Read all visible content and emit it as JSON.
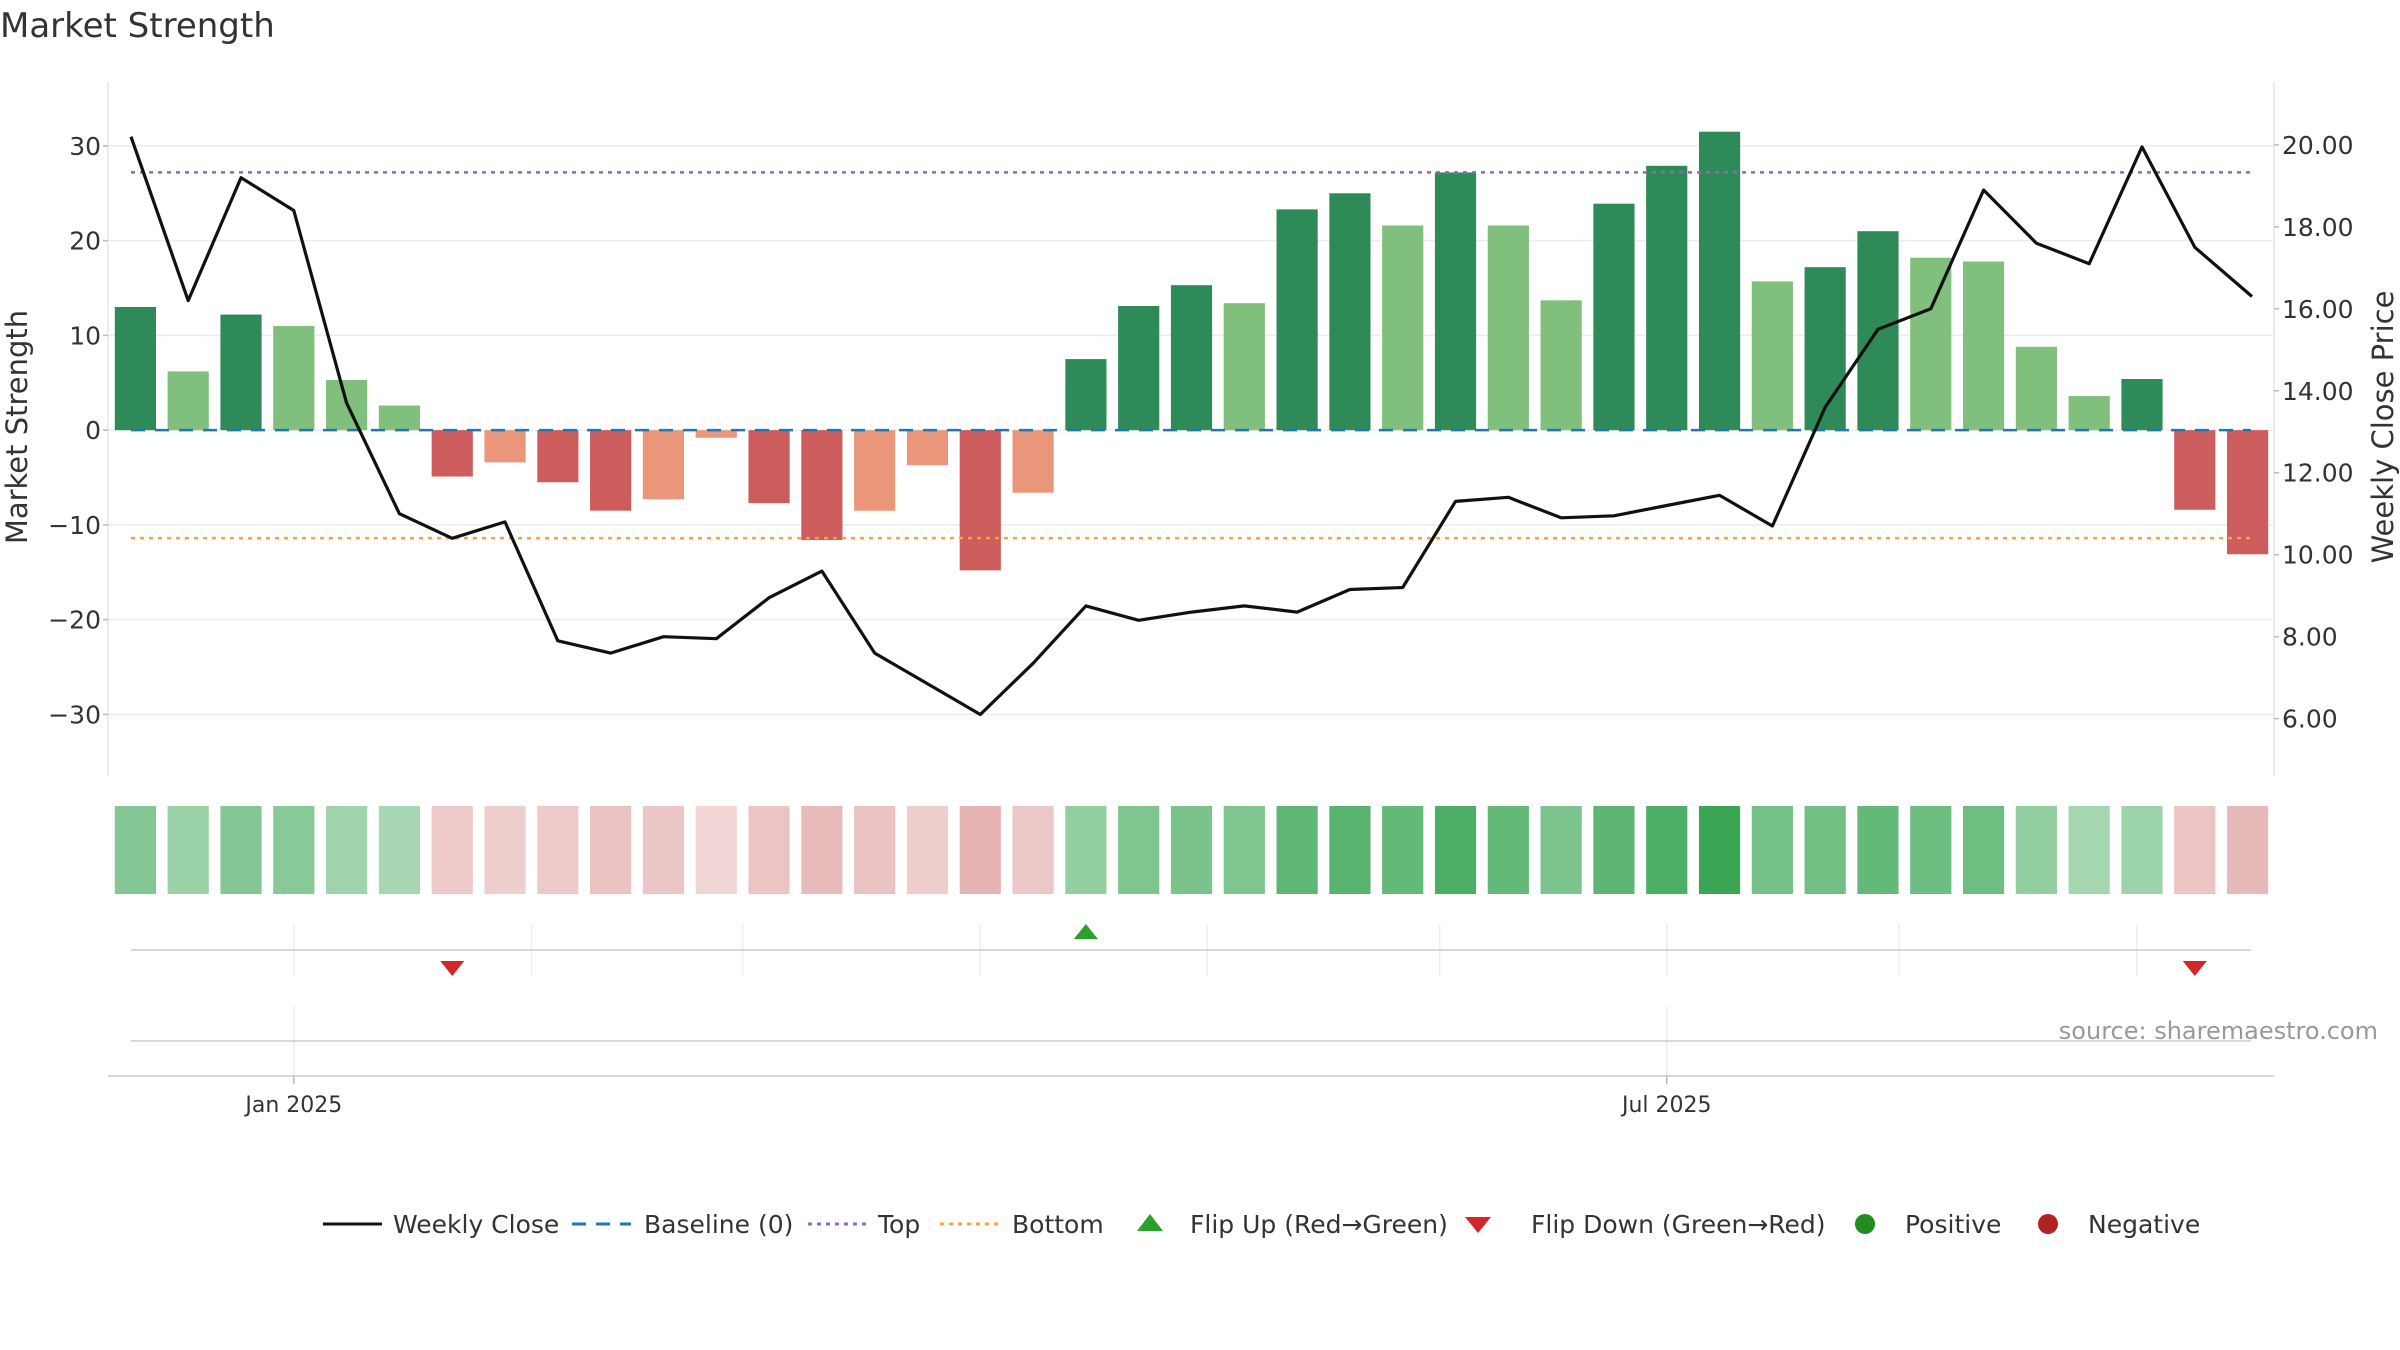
{
  "chart_data": {
    "type": "bar",
    "title": "Market Strength",
    "ylabel": "Market Strength",
    "y2label": "Weekly Close Price",
    "ylim": [
      -36.5,
      34
    ],
    "y2lim": [
      4.6,
      20.9
    ],
    "yticks": [
      30,
      20,
      10,
      0,
      -10,
      -20,
      -30
    ],
    "ytick_labels": [
      "30",
      "20",
      "10",
      "0",
      "−10",
      "−20",
      "−30"
    ],
    "y2ticks": [
      20,
      18,
      16,
      14,
      12,
      10,
      8,
      6
    ],
    "y2tick_labels": [
      "20.00",
      "18.00",
      "16.00",
      "14.00",
      "12.00",
      "10.00",
      "8.00",
      "6.00"
    ],
    "x_tick_labels": [
      "Jan 2025",
      "Jul 2025"
    ],
    "x_tick_weeks": [
      3.5,
      29.5
    ],
    "strength": [
      13.0,
      6.2,
      12.2,
      11.0,
      5.3,
      2.6,
      -4.9,
      -3.4,
      -5.5,
      -8.5,
      -7.3,
      -0.8,
      -7.7,
      -11.6,
      -8.5,
      -3.7,
      -14.8,
      -6.6,
      7.5,
      13.1,
      15.3,
      13.4,
      23.3,
      25.0,
      21.6,
      27.2,
      21.6,
      13.7,
      23.9,
      27.9,
      31.5,
      15.7,
      17.2,
      21.0,
      18.2,
      17.8,
      8.8,
      3.6,
      5.4,
      -8.4,
      -13.1
    ],
    "strength_shade": [
      "dark",
      "light",
      "dark",
      "light",
      "light",
      "light",
      "dark",
      "light",
      "dark",
      "dark",
      "light",
      "light",
      "dark",
      "dark",
      "light",
      "light",
      "dark",
      "light",
      "dark",
      "dark",
      "dark",
      "light",
      "dark",
      "dark",
      "light",
      "dark",
      "light",
      "light",
      "dark",
      "dark",
      "dark",
      "light",
      "dark",
      "dark",
      "light",
      "light",
      "light",
      "light",
      "dark",
      "dark",
      "dark"
    ],
    "heat_intensity": [
      0.5,
      0.35,
      0.5,
      0.47,
      0.32,
      0.26,
      0.29,
      0.24,
      0.29,
      0.36,
      0.33,
      0.15,
      0.35,
      0.45,
      0.36,
      0.25,
      0.55,
      0.32,
      0.39,
      0.53,
      0.57,
      0.53,
      0.75,
      0.8,
      0.72,
      0.87,
      0.72,
      0.55,
      0.76,
      0.87,
      1.0,
      0.6,
      0.63,
      0.72,
      0.66,
      0.65,
      0.4,
      0.28,
      0.33,
      0.35,
      0.48
    ],
    "weekly_close": [
      20.2,
      16.2,
      19.2,
      18.4,
      13.7,
      11.0,
      10.4,
      10.8,
      7.9,
      7.6,
      8.0,
      7.95,
      8.95,
      9.6,
      7.6,
      6.85,
      6.1,
      7.35,
      8.75,
      8.4,
      8.6,
      8.75,
      8.6,
      9.15,
      9.2,
      11.3,
      11.4,
      10.9,
      10.95,
      11.2,
      11.45,
      10.7,
      13.6,
      15.5,
      16.0,
      18.9,
      17.6,
      17.1,
      19.95,
      17.5,
      16.3
    ],
    "baseline": 0,
    "top_line": 27.2,
    "bottom_line": -11.4,
    "flip_up_weeks": [
      18
    ],
    "flip_down_weeks": [
      6,
      39
    ],
    "legend_position": "bottom",
    "grid": true,
    "colors": {
      "positive_strong": "#2e8b57",
      "positive_light": "#80c07c",
      "negative_strong": "#cd5c5c",
      "negative_light": "#e9967a",
      "heat_positive": "#3aa654",
      "heat_negative": "#d98c8c",
      "weekly_close": "#111111",
      "baseline": "#1f77b4",
      "top": "#9467bd",
      "bottom": "#ff9f43",
      "flip_up": "#2ca02c",
      "flip_down": "#d62728",
      "positive_dot": "#228b22",
      "negative_dot": "#b22222"
    }
  },
  "legend": {
    "weekly_close": "Weekly Close",
    "baseline": "Baseline (0)",
    "top": "Top",
    "bottom": "Bottom",
    "flip_up": "Flip Up (Red→Green)",
    "flip_down": "Flip Down (Green→Red)",
    "positive": "Positive",
    "negative": "Negative"
  },
  "source_text": "source: sharemaestro.com"
}
